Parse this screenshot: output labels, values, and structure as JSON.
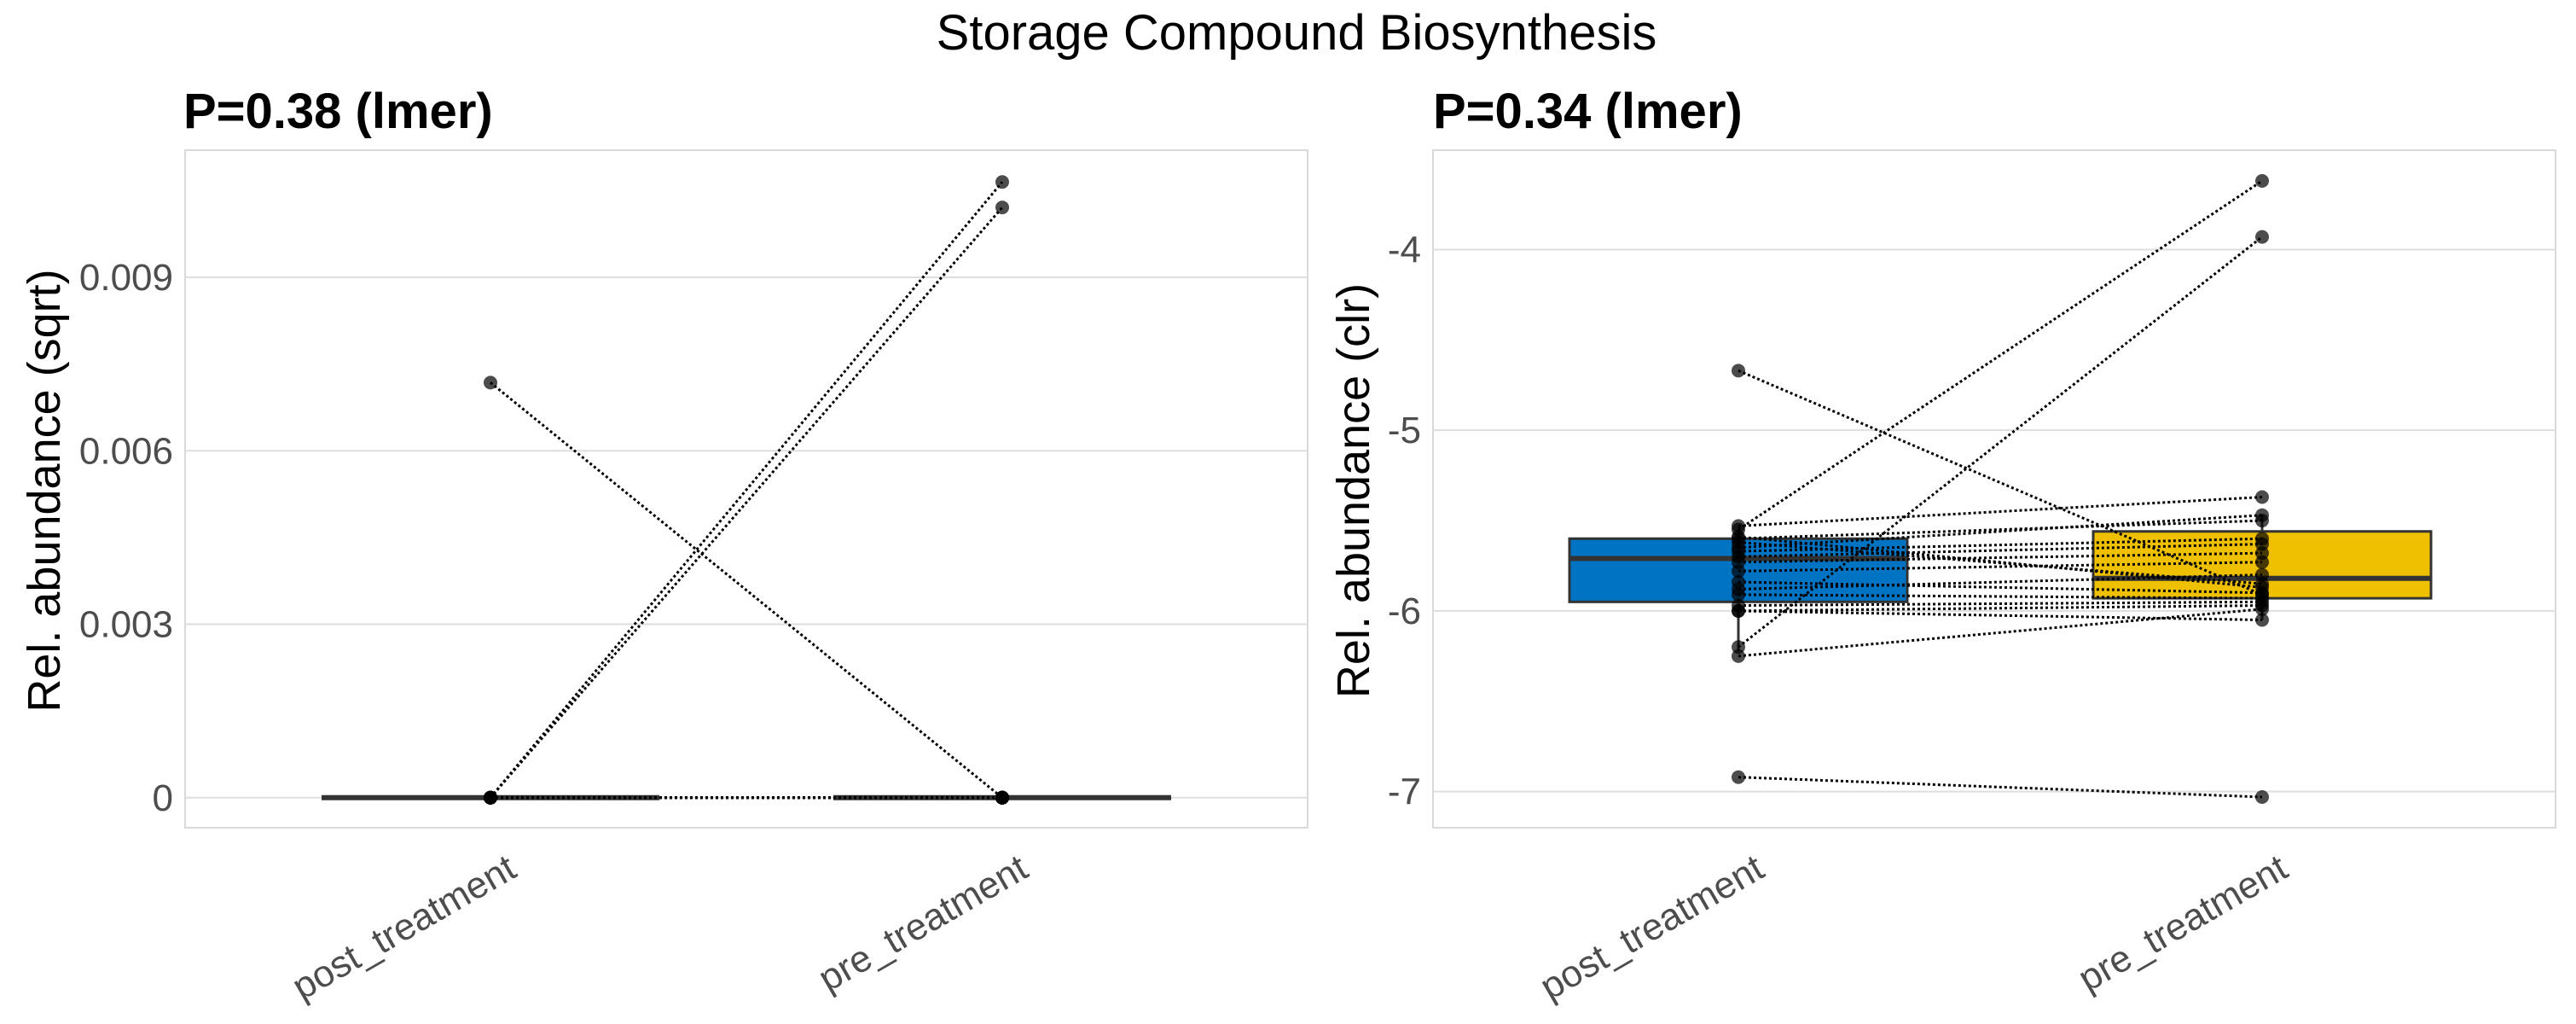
{
  "figure": {
    "title": "Storage Compound Biosynthesis"
  },
  "chart_data": [
    {
      "type": "box",
      "title": "P=0.38 (lmer)",
      "xlabel": "",
      "ylabel": "Rel. abundance (sqrt)",
      "categories": [
        "post_treatment",
        "pre_treatment"
      ],
      "ylim": [
        -0.00052,
        0.0112
      ],
      "yticks": [
        0,
        0.003,
        0.006,
        0.009
      ],
      "ytick_labels": [
        "0",
        "0.003",
        "0.006",
        "0.009"
      ],
      "grid": true,
      "boxes": [
        {
          "category": "post_treatment",
          "q1": 0,
          "median": 0,
          "q3": 0,
          "whisker_low": 0,
          "whisker_high": 0,
          "fill": "#ffffff"
        },
        {
          "category": "pre_treatment",
          "q1": 0,
          "median": 0,
          "q3": 0,
          "whisker_low": 0,
          "whisker_high": 0,
          "fill": "#ffffff"
        }
      ],
      "pairs": [
        [
          0.00718,
          0
        ],
        [
          0,
          0.01065
        ],
        [
          0,
          0.01021
        ],
        [
          0,
          0
        ],
        [
          0,
          0
        ],
        [
          0,
          0
        ],
        [
          0,
          0
        ],
        [
          0,
          0
        ],
        [
          0,
          0
        ],
        [
          0,
          0
        ],
        [
          0,
          0
        ],
        [
          0,
          0
        ],
        [
          0,
          0
        ],
        [
          0,
          0
        ],
        [
          0,
          0
        ],
        [
          0,
          0
        ],
        [
          0,
          0
        ],
        [
          0,
          0
        ],
        [
          0,
          0
        ],
        [
          0,
          0
        ]
      ]
    },
    {
      "type": "box",
      "title": "P=0.34 (lmer)",
      "xlabel": "",
      "ylabel": "Rel. abundance (clr)",
      "categories": [
        "post_treatment",
        "pre_treatment"
      ],
      "ylim": [
        -7.2,
        -3.45
      ],
      "yticks": [
        -7,
        -6,
        -5,
        -4
      ],
      "ytick_labels": [
        "-7",
        "-6",
        "-5",
        "-4"
      ],
      "grid": true,
      "boxes": [
        {
          "category": "post_treatment",
          "q1": -5.95,
          "median": -5.71,
          "q3": -5.6,
          "whisker_low": -6.22,
          "whisker_high": -5.55,
          "fill": "#0073c2"
        },
        {
          "category": "pre_treatment",
          "q1": -5.93,
          "median": -5.82,
          "q3": -5.56,
          "whisker_low": -6.05,
          "whisker_high": -5.47,
          "fill": "#efc000"
        }
      ],
      "pairs": [
        [
          -4.67,
          -5.91
        ],
        [
          -5.55,
          -3.62
        ],
        [
          -6.2,
          -3.93
        ],
        [
          -6.92,
          -7.03
        ],
        [
          -5.53,
          -5.37
        ],
        [
          -5.6,
          -5.5
        ],
        [
          -5.65,
          -5.47
        ],
        [
          -5.67,
          -5.6
        ],
        [
          -5.7,
          -5.63
        ],
        [
          -5.73,
          -5.68
        ],
        [
          -5.78,
          -5.73
        ],
        [
          -5.62,
          -5.85
        ],
        [
          -5.84,
          -5.9
        ],
        [
          -5.88,
          -5.8
        ],
        [
          -5.91,
          -5.93
        ],
        [
          -5.97,
          -5.95
        ],
        [
          -6.0,
          -5.97
        ],
        [
          -6.0,
          -6.05
        ],
        [
          -6.25,
          -5.99
        ],
        [
          -5.59,
          -5.87
        ]
      ]
    }
  ]
}
